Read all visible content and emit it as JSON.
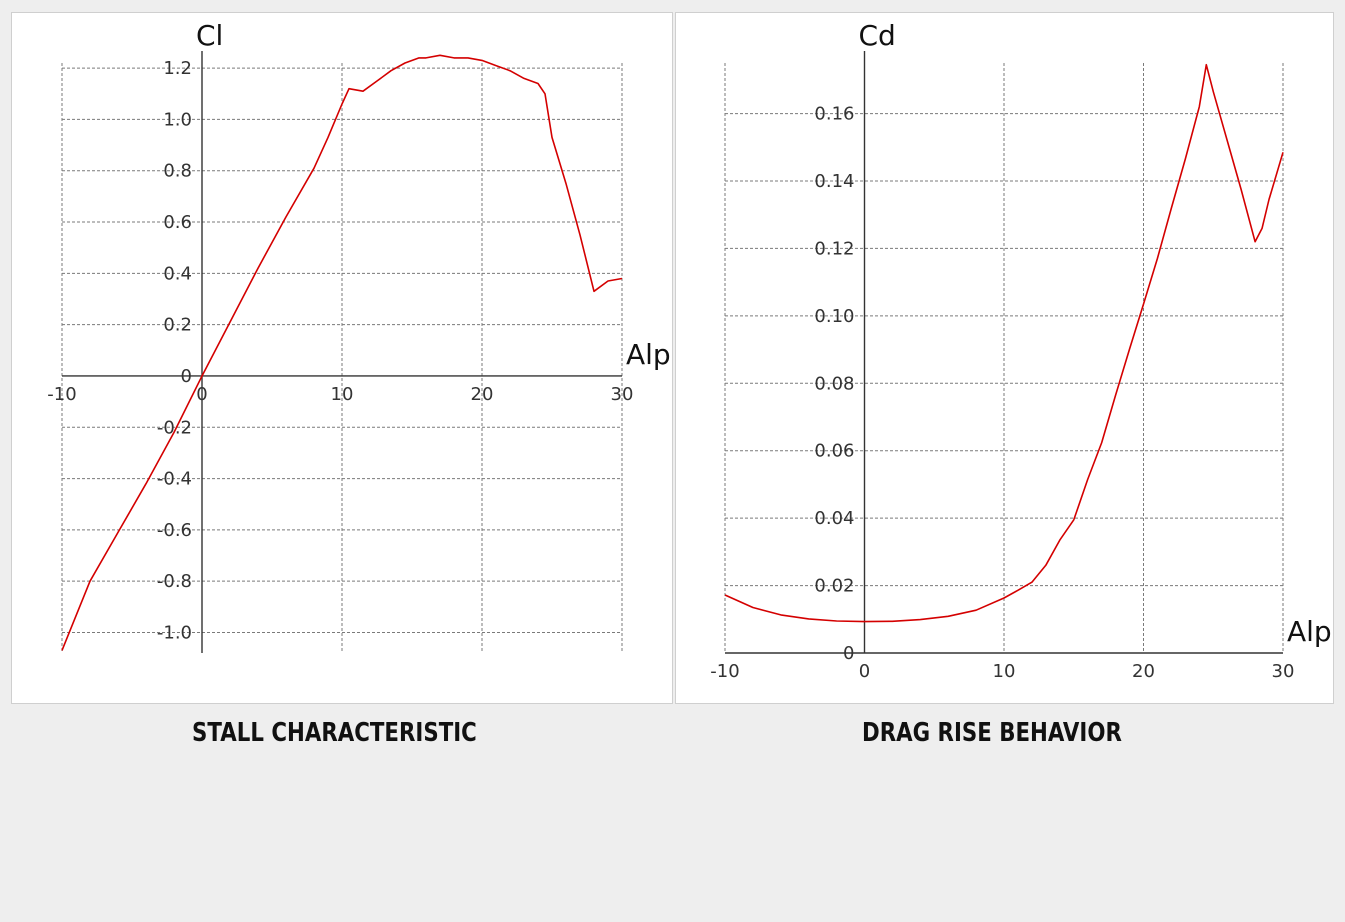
{
  "colors": {
    "curve": "#d40000",
    "panel_bg": "#ffffff",
    "page_bg": "#eeeeee"
  },
  "chart_data": [
    {
      "type": "line",
      "caption": "STALL CHARACTERISTIC",
      "xlabel": "Alp",
      "ylabel": "Cl",
      "xlim": [
        -10,
        30
      ],
      "ylim": [
        -1.08,
        1.22
      ],
      "grid": true,
      "x_ticks": [
        -10,
        0,
        10,
        20,
        30
      ],
      "x_tick_labels": [
        "-10",
        "0",
        "10",
        "20",
        "30"
      ],
      "y_ticks": [
        -1.0,
        -0.8,
        -0.6,
        -0.4,
        -0.2,
        0,
        0.2,
        0.4,
        0.6,
        0.8,
        1.0,
        1.2
      ],
      "y_tick_labels": [
        "-1.0",
        "-0.8",
        "-0.6",
        "-0.4",
        "-0.2",
        "0",
        "0.2",
        "0.4",
        "0.6",
        "0.8",
        "1.0",
        "1.2"
      ],
      "series": [
        {
          "x": [
            -10,
            -8,
            -6,
            -4,
            -2,
            0,
            2,
            4,
            6,
            8,
            9,
            10,
            10.5,
            11.5,
            12.5,
            13.5,
            14.5,
            15.5,
            16,
            17,
            18,
            19,
            20,
            21,
            22,
            23,
            24,
            24.5,
            25,
            26,
            27,
            28,
            29,
            30
          ],
          "y": [
            -1.07,
            -0.8,
            -0.61,
            -0.42,
            -0.22,
            0.0,
            0.21,
            0.42,
            0.62,
            0.81,
            0.93,
            1.06,
            1.12,
            1.11,
            1.15,
            1.19,
            1.22,
            1.24,
            1.24,
            1.25,
            1.24,
            1.24,
            1.23,
            1.21,
            1.19,
            1.16,
            1.14,
            1.1,
            0.93,
            0.75,
            0.55,
            0.33,
            0.37,
            0.38
          ]
        }
      ]
    },
    {
      "type": "line",
      "caption": "DRAG RISE BEHAVIOR",
      "xlabel": "Alp",
      "ylabel": "Cd",
      "xlim": [
        -10,
        30
      ],
      "ylim": [
        0,
        0.175
      ],
      "grid": true,
      "x_ticks": [
        -10,
        0,
        10,
        20,
        30
      ],
      "x_tick_labels": [
        "-10",
        "0",
        "10",
        "20",
        "30"
      ],
      "y_ticks": [
        0,
        0.02,
        0.04,
        0.06,
        0.08,
        0.1,
        0.12,
        0.14,
        0.16
      ],
      "y_tick_labels": [
        "0",
        "0.02",
        "0.04",
        "0.06",
        "0.08",
        "0.10",
        "0.12",
        "0.14",
        "0.16"
      ],
      "series": [
        {
          "x": [
            -10,
            -8,
            -6,
            -4,
            -2,
            0,
            2,
            4,
            6,
            8,
            10,
            11,
            12,
            13,
            14,
            15,
            16,
            17,
            18,
            19,
            20,
            21,
            22,
            23,
            24,
            24.5,
            25,
            26,
            27,
            28,
            28.5,
            29,
            30
          ],
          "y": [
            0.0172,
            0.0135,
            0.0113,
            0.0101,
            0.0095,
            0.0093,
            0.0094,
            0.0099,
            0.0109,
            0.0127,
            0.0163,
            0.0186,
            0.021,
            0.026,
            0.0335,
            0.0395,
            0.0515,
            0.0624,
            0.0765,
            0.0902,
            0.1035,
            0.117,
            0.132,
            0.1465,
            0.162,
            0.1745,
            0.1665,
            0.152,
            0.1375,
            0.122,
            0.126,
            0.1345,
            0.1485
          ]
        }
      ]
    }
  ]
}
